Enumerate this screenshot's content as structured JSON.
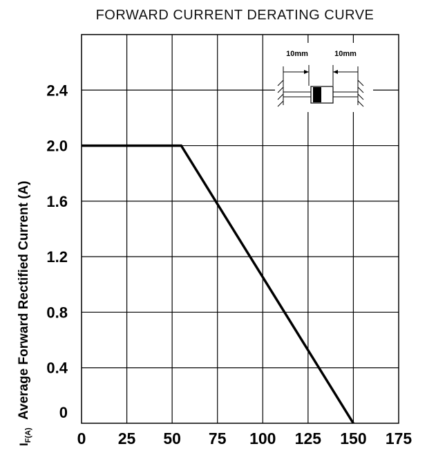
{
  "chart_data": {
    "type": "line",
    "title": "FORWARD CURRENT DERATING CURVE",
    "xlabel": "",
    "ylabel": "Average Forward Rectified Current (A)",
    "ylabel_symbol": "I",
    "ylabel_subscript": "F(A)",
    "xlim": [
      0,
      175
    ],
    "ylim": [
      0,
      2.8
    ],
    "x_ticks": [
      0,
      25,
      50,
      75,
      100,
      125,
      150,
      175
    ],
    "x_tick_labels": [
      "0",
      "25",
      "50",
      "75",
      "100",
      "125",
      "150",
      "175"
    ],
    "y_ticks": [
      0,
      0.4,
      0.8,
      1.2,
      1.6,
      2.0,
      2.4
    ],
    "y_tick_labels": [
      "0",
      "0.4",
      "0.8",
      "1.2",
      "1.6",
      "2.0",
      "2.4"
    ],
    "grid": true,
    "series": [
      {
        "x": [
          0,
          55,
          150
        ],
        "y": [
          2.0,
          2.0,
          0
        ]
      }
    ],
    "inset": {
      "labels": [
        "10mm",
        "10mm"
      ]
    }
  }
}
